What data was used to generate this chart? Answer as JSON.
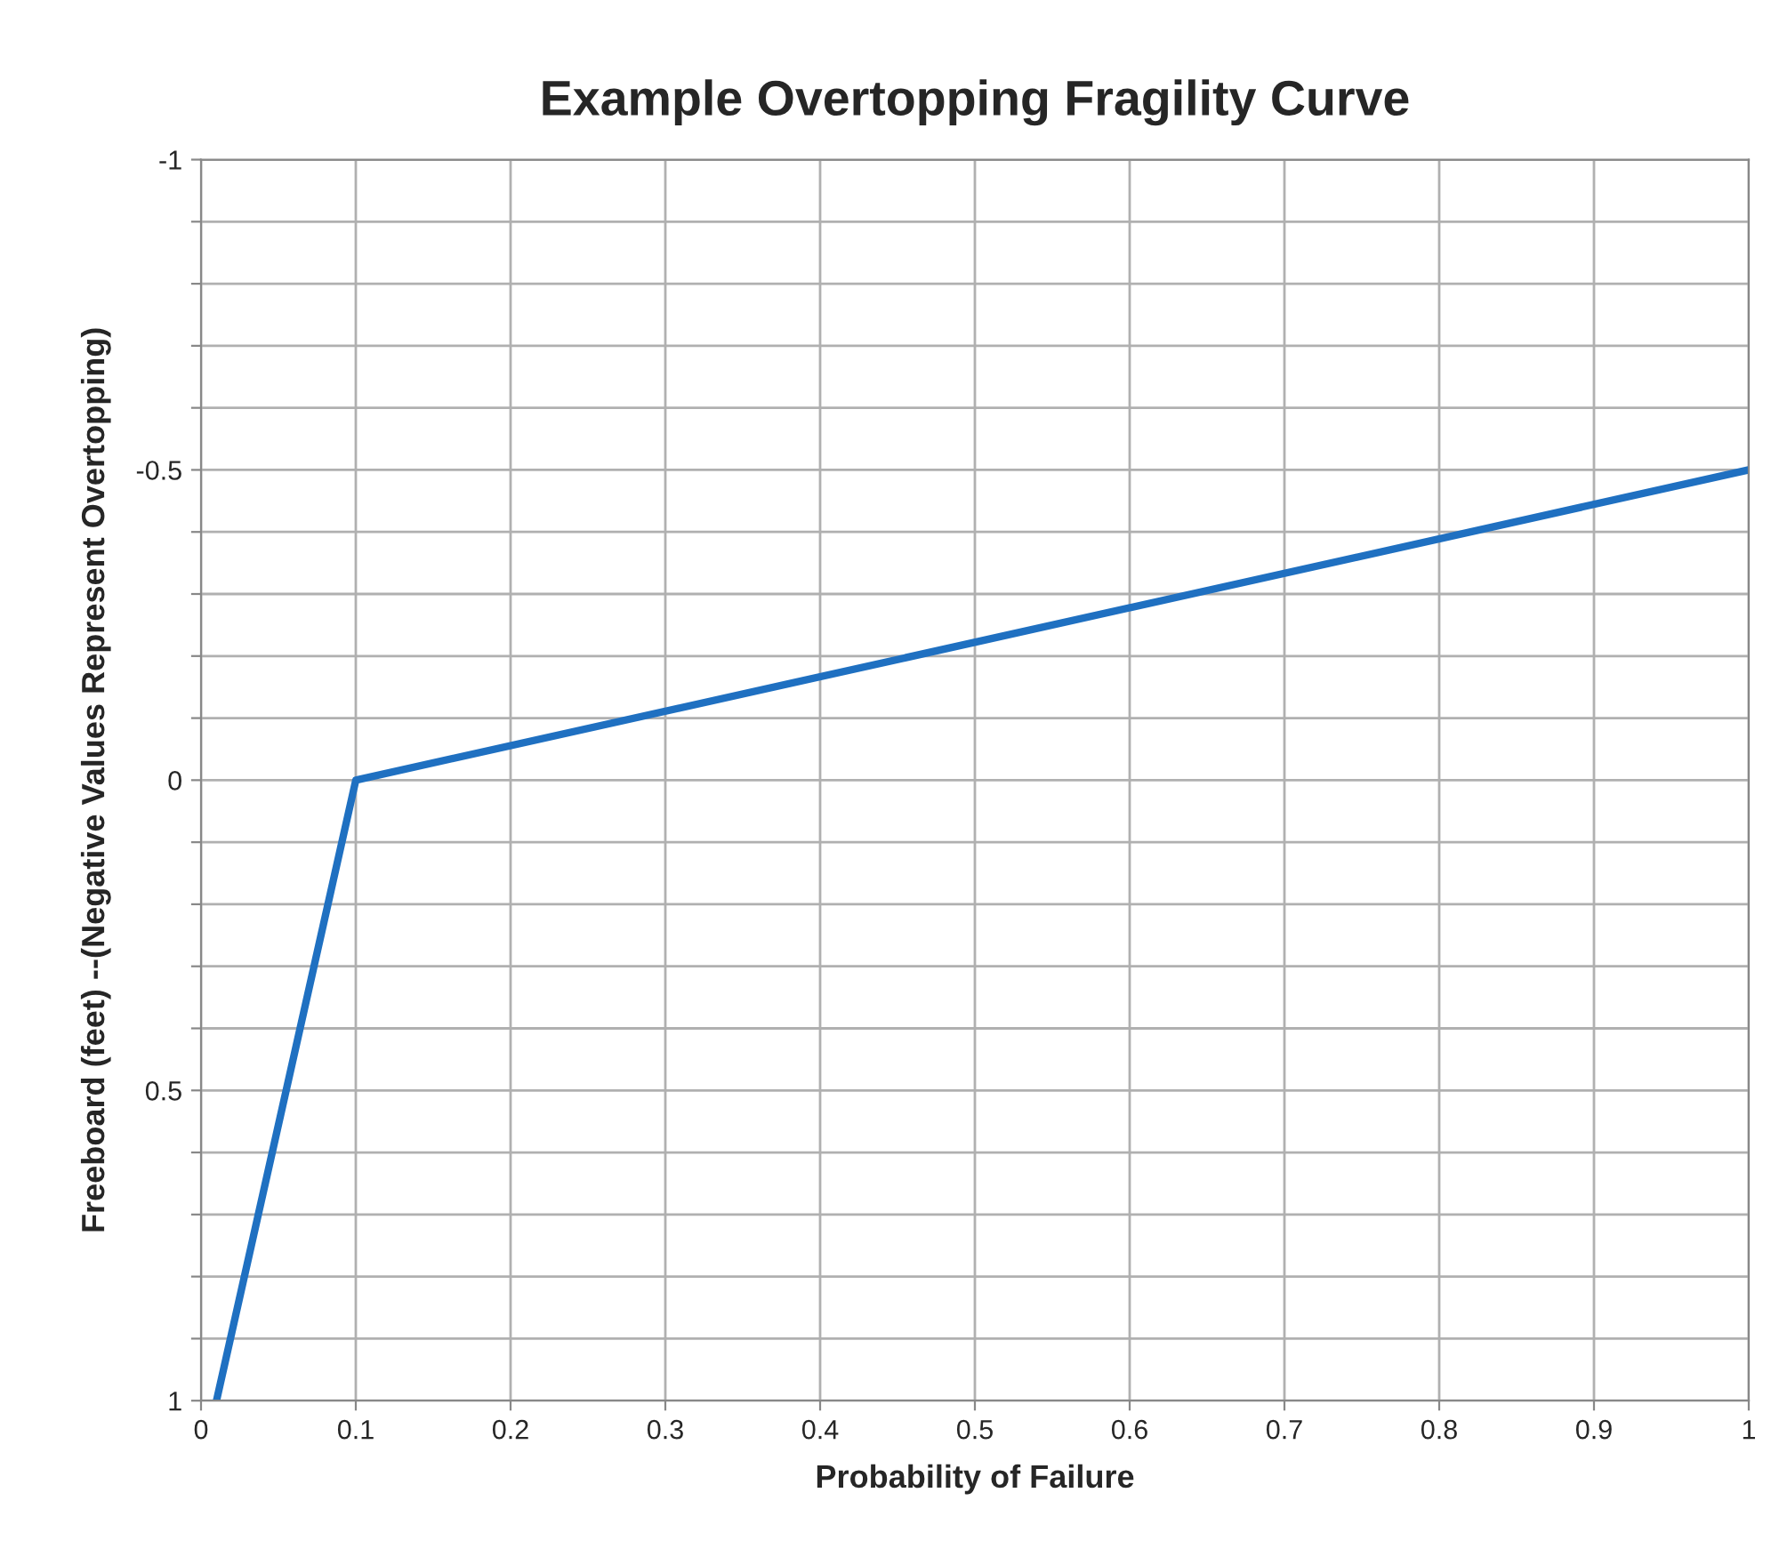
{
  "chart_data": {
    "type": "line",
    "title": "Example Overtopping Fragility Curve",
    "xlabel": "Probability of Failure",
    "ylabel": "Freeboard (feet) --(Negative Values Represent Overtopping)",
    "x": [
      0.01,
      0.1,
      1
    ],
    "series": [
      {
        "color": "#1f70c1",
        "values": [
          1,
          0,
          -0.5
        ]
      }
    ],
    "xlim": [
      0,
      1
    ],
    "xticks": [
      0,
      0.1,
      0.2,
      0.3,
      0.4,
      0.5,
      0.6,
      0.7,
      0.8,
      0.9,
      1
    ],
    "ylim": [
      1,
      -1
    ],
    "yticks": [
      -1,
      {
        "value": -0.9,
        "label": null
      },
      {
        "value": -0.8,
        "label": null
      },
      {
        "value": -0.7,
        "label": null
      },
      {
        "value": -0.6,
        "label": null
      },
      -0.5,
      {
        "value": -0.4,
        "label": null
      },
      {
        "value": -0.3,
        "label": null
      },
      {
        "value": -0.2,
        "label": null
      },
      {
        "value": -0.1,
        "label": null
      },
      0,
      {
        "value": 0.1,
        "label": null
      },
      {
        "value": 0.2,
        "label": null
      },
      {
        "value": 0.3,
        "label": null
      },
      {
        "value": 0.4,
        "label": null
      },
      0.5,
      {
        "value": 0.6,
        "label": null
      },
      {
        "value": 0.7,
        "label": null
      },
      {
        "value": 0.8,
        "label": null
      },
      {
        "value": 0.9,
        "label": null
      },
      1
    ],
    "grid": true,
    "legend": false,
    "marker": "none",
    "line_style": "solid"
  }
}
